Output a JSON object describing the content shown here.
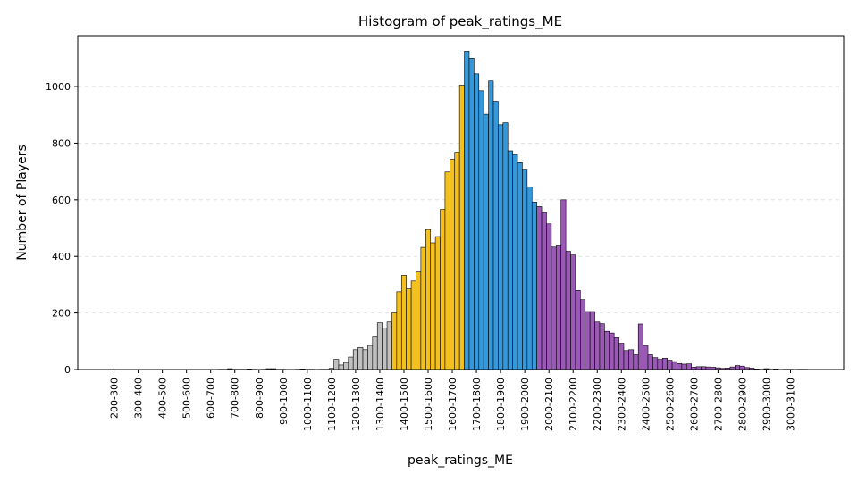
{
  "chart_data": {
    "type": "bar",
    "title": "Histogram of peak_ratings_ME",
    "xlabel": "peak_ratings_ME",
    "ylabel": "Number of Players",
    "ylim": [
      0,
      1180
    ],
    "xlim": [
      100,
      3270
    ],
    "yticks": [
      0,
      200,
      400,
      600,
      800,
      1000
    ],
    "grid": true,
    "bin_width": 20,
    "bin_start": 200,
    "range_labels": [
      "200-300",
      "300-400",
      "400-500",
      "500-600",
      "600-700",
      "700-800",
      "800-900",
      "900-1000",
      "1000-1100",
      "1100-1200",
      "1200-1300",
      "1300-1400",
      "1400-1500",
      "1500-1600",
      "1600-1700",
      "1700-1800",
      "1800-1900",
      "1900-2000",
      "2000-2100",
      "2100-2200",
      "2200-2300",
      "2300-2400",
      "2400-2500",
      "2500-2600",
      "2600-2700",
      "2700-2800",
      "2800-2900",
      "2900-3000",
      "3000-3100"
    ],
    "tick_positions": [
      250,
      350,
      450,
      550,
      650,
      750,
      850,
      950,
      1050,
      1150,
      1250,
      1350,
      1450,
      1550,
      1650,
      1750,
      1850,
      1950,
      2050,
      2150,
      2250,
      2350,
      2450,
      2550,
      2650,
      2750,
      2850,
      2950,
      3050
    ],
    "color_groups": [
      {
        "from": 200,
        "to": 700,
        "color": "#ffffff"
      },
      {
        "from": 700,
        "to": 900,
        "color": "#2ca04f"
      },
      {
        "from": 900,
        "to": 1120,
        "color": "#8b5a2b"
      },
      {
        "from": 1120,
        "to": 1400,
        "color": "#c0c0c0"
      },
      {
        "from": 1400,
        "to": 1700,
        "color": "#f4c01e"
      },
      {
        "from": 1700,
        "to": 2000,
        "color": "#3498db"
      },
      {
        "from": 2000,
        "to": 3200,
        "color": "#9b59b6"
      }
    ],
    "values": [
      0,
      0,
      0,
      0,
      0,
      0,
      0,
      0,
      0,
      0,
      0,
      0,
      0,
      0,
      0,
      0,
      0,
      0,
      0,
      0,
      0,
      0,
      0,
      0,
      1,
      1,
      3,
      1,
      1,
      1,
      2,
      1,
      0,
      1,
      3,
      3,
      1,
      1,
      0,
      0,
      1,
      2,
      1,
      1,
      0,
      1,
      1,
      4,
      36,
      16,
      25,
      44,
      70,
      78,
      70,
      85,
      118,
      165,
      147,
      168,
      200,
      275,
      333,
      285,
      313,
      345,
      432,
      495,
      448,
      470,
      566,
      698,
      743,
      768,
      1005,
      1125,
      1100,
      1045,
      985,
      902,
      1020,
      948,
      865,
      872,
      773,
      760,
      731,
      708,
      645,
      592,
      576,
      555,
      515,
      433,
      437,
      600,
      418,
      405,
      280,
      247,
      205,
      205,
      168,
      162,
      135,
      129,
      113,
      93,
      67,
      70,
      52,
      161,
      85,
      52,
      42,
      36,
      40,
      33,
      28,
      21,
      19,
      20,
      8,
      10,
      10,
      9,
      8,
      6,
      4,
      5,
      9,
      14,
      12,
      7,
      5,
      2,
      1,
      3,
      1,
      2,
      0,
      1,
      1,
      0,
      1,
      1,
      0,
      0,
      0,
      0,
      0,
      0,
      0,
      0,
      0,
      0,
      0,
      0,
      0,
      0,
      0,
      0,
      0,
      0,
      0,
      0,
      0,
      0
    ]
  }
}
